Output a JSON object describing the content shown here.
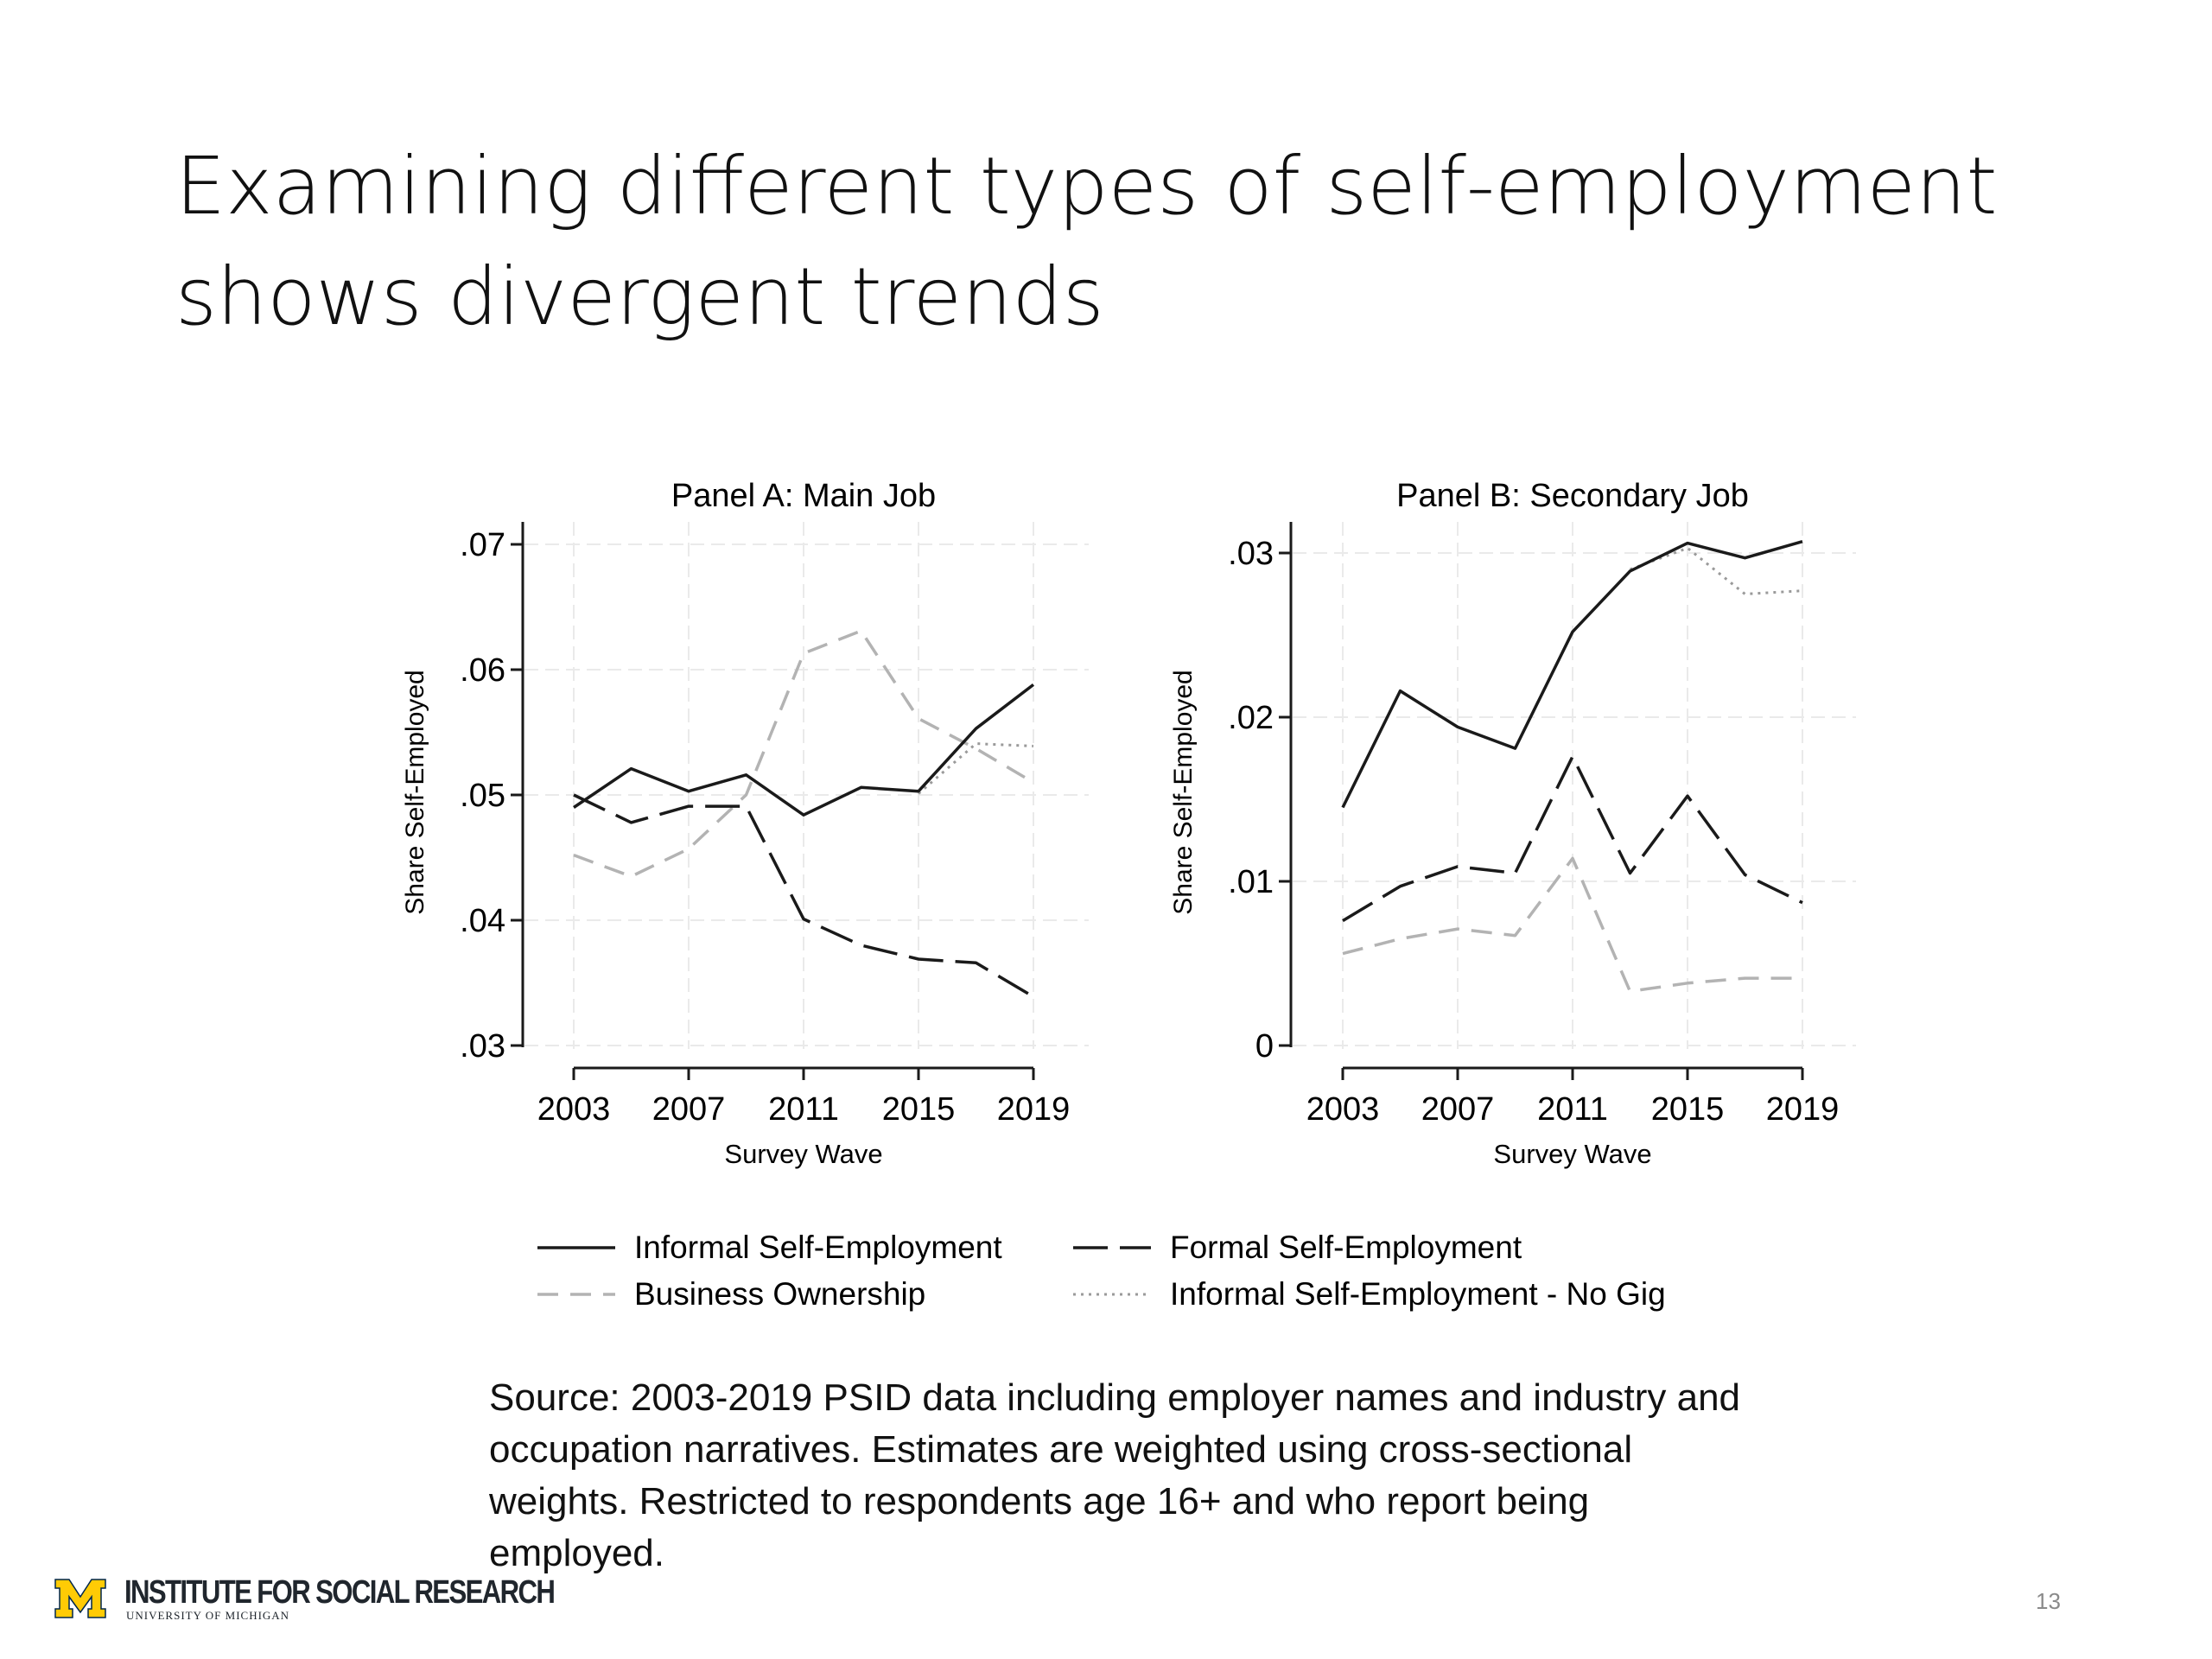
{
  "slide": {
    "title_line1": "Examining different types of self-employment",
    "title_line2": "shows divergent trends",
    "source_note": "Source: 2003-2019 PSID data including employer names and industry and occupation narratives. Estimates are weighted using cross-sectional weights. Restricted to respondents age 16+ and who report being employed.",
    "page_number": "13"
  },
  "footer": {
    "logo_text": "INSTITUTE FOR SOCIAL RESEARCH",
    "logo_subtext": "UNIVERSITY OF MICHIGAN",
    "logo_mark": "M",
    "logo_color": "#FFCB05",
    "logo_edge_color": "#00274C"
  },
  "legend": {
    "items": [
      {
        "label": "Informal Self-Employment",
        "style": "solid",
        "color": "#1a1a1a"
      },
      {
        "label": "Formal Self-Employment",
        "style": "longdash",
        "color": "#1a1a1a"
      },
      {
        "label": "Business Ownership",
        "style": "dash",
        "color": "#b3b3b3"
      },
      {
        "label": "Informal Self-Employment - No Gig",
        "style": "dot",
        "color": "#9a9a9a"
      }
    ]
  },
  "chart_data": [
    {
      "type": "line",
      "title": "Panel A: Main Job",
      "xlabel": "Survey Wave",
      "ylabel": "Share Self-Employed",
      "x": [
        2003,
        2005,
        2007,
        2009,
        2011,
        2013,
        2015,
        2017,
        2019
      ],
      "xticks": [
        2003,
        2007,
        2011,
        2015,
        2019
      ],
      "xtick_labels": [
        "2003",
        "2007",
        "2011",
        "2015",
        "2019"
      ],
      "yticks": [
        0.03,
        0.04,
        0.05,
        0.06,
        0.07
      ],
      "ytick_labels": [
        ".03",
        ".04",
        ".05",
        ".06",
        ".07"
      ],
      "ylim": [
        0.03,
        0.07
      ],
      "grid": true,
      "series": [
        {
          "name": "Informal Self-Employment",
          "style": "solid",
          "color": "#1a1a1a",
          "values": [
            0.049,
            0.0521,
            0.0503,
            0.0516,
            0.0484,
            0.0506,
            0.0503,
            0.0553,
            0.0588
          ]
        },
        {
          "name": "Formal Self-Employment",
          "style": "longdash",
          "color": "#1a1a1a",
          "values": [
            0.05,
            0.0478,
            0.0491,
            0.0491,
            0.0401,
            0.038,
            0.0369,
            0.0366,
            0.0339
          ]
        },
        {
          "name": "Business Ownership",
          "style": "dash",
          "color": "#b3b3b3",
          "values": [
            0.0452,
            0.0435,
            0.0457,
            0.05,
            0.0613,
            0.0631,
            0.0561,
            0.0537,
            0.051
          ]
        },
        {
          "name": "Informal Self-Employment - No Gig",
          "style": "dot",
          "color": "#9a9a9a",
          "values": [
            null,
            null,
            null,
            null,
            null,
            null,
            0.0501,
            0.0541,
            0.0539
          ]
        }
      ]
    },
    {
      "type": "line",
      "title": "Panel B: Secondary Job",
      "xlabel": "Survey Wave",
      "ylabel": "Share Self-Employed",
      "x": [
        2003,
        2005,
        2007,
        2009,
        2011,
        2013,
        2015,
        2017,
        2019
      ],
      "xticks": [
        2003,
        2007,
        2011,
        2015,
        2019
      ],
      "xtick_labels": [
        "2003",
        "2007",
        "2011",
        "2015",
        "2019"
      ],
      "yticks": [
        0,
        0.01,
        0.02,
        0.03
      ],
      "ytick_labels": [
        "0",
        ".01",
        ".02",
        ".03"
      ],
      "ylim": [
        0,
        0.032
      ],
      "grid": true,
      "series": [
        {
          "name": "Informal Self-Employment",
          "style": "solid",
          "color": "#1a1a1a",
          "values": [
            0.0145,
            0.0216,
            0.0194,
            0.0181,
            0.0252,
            0.0289,
            0.0306,
            0.0297,
            0.0307
          ]
        },
        {
          "name": "Formal Self-Employment",
          "style": "longdash",
          "color": "#1a1a1a",
          "values": [
            0.0076,
            0.0097,
            0.0109,
            0.0105,
            0.0176,
            0.0105,
            0.0152,
            0.0104,
            0.0087
          ]
        },
        {
          "name": "Business Ownership",
          "style": "dash",
          "color": "#b3b3b3",
          "values": [
            0.0056,
            0.0065,
            0.0071,
            0.0067,
            0.0114,
            0.0033,
            0.0038,
            0.0041,
            0.0041
          ]
        },
        {
          "name": "Informal Self-Employment - No Gig",
          "style": "dot",
          "color": "#9a9a9a",
          "values": [
            null,
            null,
            null,
            null,
            null,
            0.029,
            0.0303,
            0.0275,
            0.0277
          ]
        }
      ]
    }
  ]
}
